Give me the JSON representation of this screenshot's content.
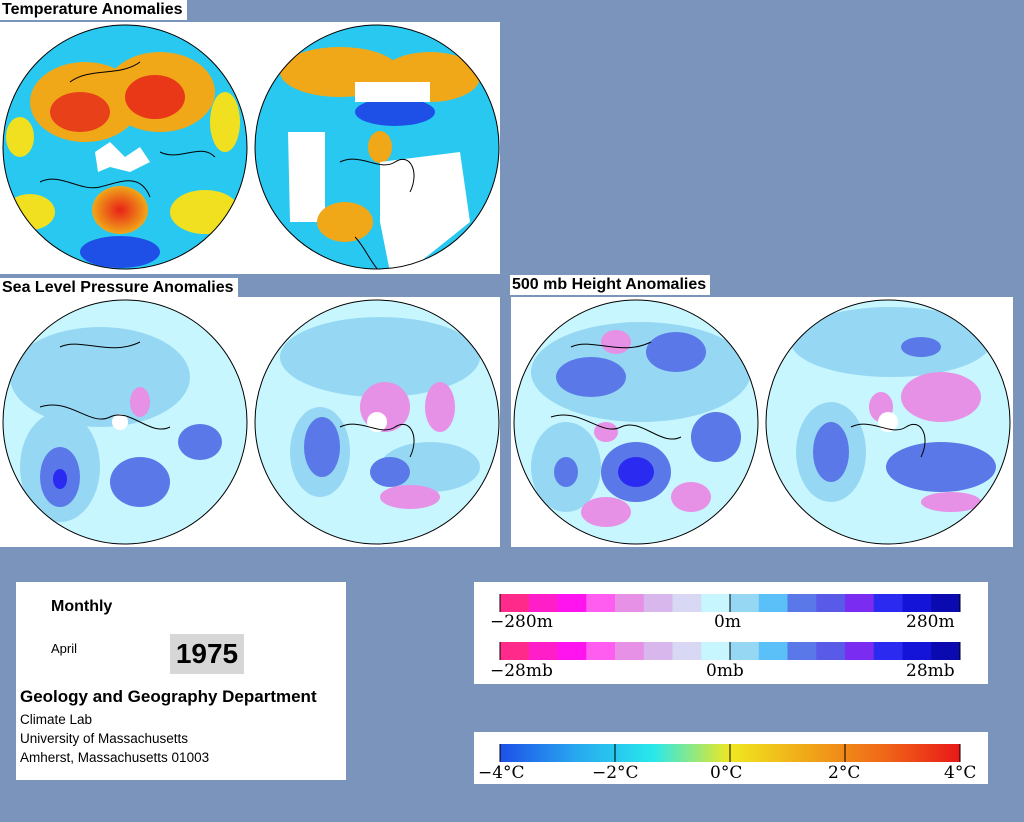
{
  "titles": {
    "temperature": "Temperature Anomalies",
    "slp": "Sea Level Pressure Anomalies",
    "height": "500 mb Height Anomalies"
  },
  "info": {
    "period": "Monthly",
    "month": "April",
    "year": "1975",
    "department": "Geology and Geography Department",
    "lab": "Climate Lab",
    "university": "University of Massachusetts",
    "address": "Amherst, Massachusetts 01003"
  },
  "legend_height": {
    "labels": [
      "−280m",
      "0m",
      "280m"
    ],
    "colors": [
      "#ff2a8a",
      "#ff1ec8",
      "#ff14f0",
      "#ff5cf0",
      "#e690e6",
      "#d8b8ec",
      "#d8d8f4",
      "#c8f6ff",
      "#96d8f4",
      "#5cc0f8",
      "#5a78e8",
      "#5a5ae8",
      "#7a2cf0",
      "#2a2af0",
      "#1414d8",
      "#0a0ab0"
    ]
  },
  "legend_slp": {
    "labels": [
      "−28mb",
      "0mb",
      "28mb"
    ],
    "colors": [
      "#ff2a8a",
      "#ff1ec8",
      "#ff14f0",
      "#ff5cf0",
      "#e690e6",
      "#d8b8ec",
      "#d8d8f4",
      "#c8f6ff",
      "#96d8f4",
      "#5cc0f8",
      "#5a78e8",
      "#5a5ae8",
      "#7a2cf0",
      "#2a2af0",
      "#1414d8",
      "#0a0ab0"
    ]
  },
  "legend_temp": {
    "labels": [
      "−4°C",
      "−2°C",
      "0°C",
      "2°C",
      "4°C"
    ],
    "colors": [
      "#1e50e8",
      "#28a8f0",
      "#28e8ec",
      "#f0e820",
      "#f0a818",
      "#f06818",
      "#e81818"
    ]
  },
  "colors": {
    "background": "#7a94bc",
    "panel": "#ffffff",
    "ocean_light": "#c8f6ff",
    "anomaly_blue": "#96d8f4",
    "anomaly_mid_blue": "#5a78e8",
    "anomaly_pink": "#e690e6",
    "warm_orange": "#f0a818",
    "hot_red": "#e83018"
  }
}
